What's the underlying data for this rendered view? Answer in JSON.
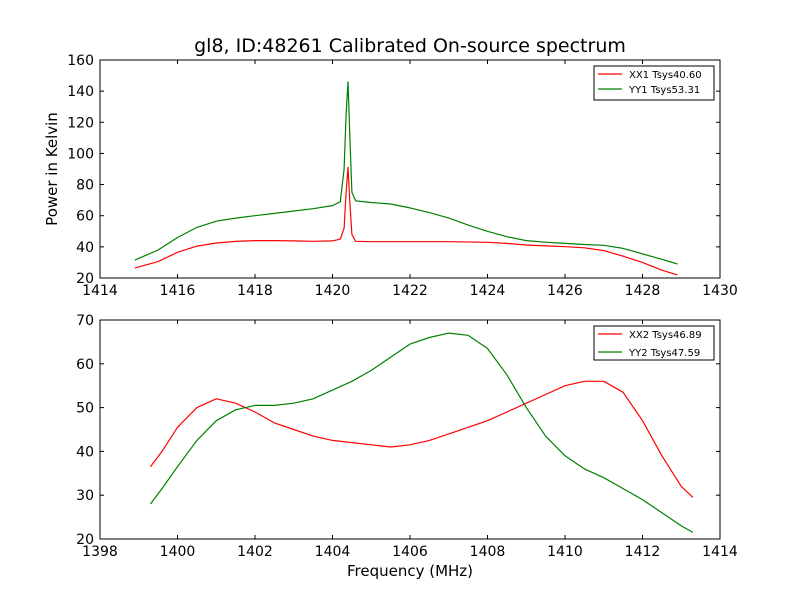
{
  "figure": {
    "title": "gl8, ID:48261 Calibrated On-source spectrum"
  },
  "colors": {
    "red": "#ff0000",
    "green": "#008000",
    "axis": "#000000"
  },
  "chart_data": [
    {
      "type": "line",
      "title": "gl8, ID:48261 Calibrated On-source spectrum",
      "xlabel": "",
      "ylabel": "Power in Kelvin",
      "xlim": [
        1414,
        1430
      ],
      "ylim": [
        20,
        160
      ],
      "xticks": [
        1414,
        1416,
        1418,
        1420,
        1422,
        1424,
        1426,
        1428,
        1430
      ],
      "yticks": [
        20,
        40,
        60,
        80,
        100,
        120,
        140,
        160
      ],
      "legend_position": "top-right",
      "grid": false,
      "series": [
        {
          "name": "XX1 Tsys40.60",
          "color": "#ff0000",
          "x": [
            1414.9,
            1415.5,
            1416.0,
            1416.5,
            1417.0,
            1417.5,
            1418.0,
            1418.5,
            1419.0,
            1419.5,
            1420.0,
            1420.2,
            1420.3,
            1420.35,
            1420.4,
            1420.45,
            1420.5,
            1420.6,
            1421.0,
            1421.5,
            1422.0,
            1423.0,
            1424.0,
            1424.5,
            1425.0,
            1425.5,
            1426.0,
            1426.5,
            1427.0,
            1427.5,
            1428.0,
            1428.5,
            1428.9
          ],
          "y": [
            26.5,
            30.5,
            36.5,
            40.5,
            42.5,
            43.5,
            44.0,
            44.0,
            43.8,
            43.6,
            43.8,
            45.0,
            52.0,
            75.0,
            91.0,
            68.0,
            48.0,
            43.6,
            43.3,
            43.3,
            43.3,
            43.3,
            42.9,
            42.2,
            41.2,
            40.6,
            40.1,
            39.4,
            37.6,
            34.0,
            30.0,
            25.0,
            22.0
          ]
        },
        {
          "name": "YY1 Tsys53.31",
          "color": "#008000",
          "x": [
            1414.9,
            1415.5,
            1416.0,
            1416.5,
            1417.0,
            1417.5,
            1418.0,
            1418.5,
            1419.0,
            1419.5,
            1420.0,
            1420.2,
            1420.3,
            1420.35,
            1420.4,
            1420.45,
            1420.5,
            1420.6,
            1421.0,
            1421.5,
            1422.0,
            1422.5,
            1423.0,
            1423.5,
            1424.0,
            1424.5,
            1425.0,
            1425.5,
            1426.0,
            1426.5,
            1427.0,
            1427.5,
            1428.0,
            1428.5,
            1428.9
          ],
          "y": [
            31.5,
            38.0,
            46.0,
            52.5,
            56.5,
            58.5,
            60.0,
            61.5,
            63.0,
            64.5,
            66.5,
            69.0,
            90.0,
            125.0,
            146.0,
            110.0,
            75.0,
            69.5,
            68.5,
            67.5,
            65.0,
            62.0,
            58.5,
            54.0,
            50.0,
            46.5,
            44.0,
            43.0,
            42.2,
            41.5,
            41.0,
            39.0,
            35.5,
            32.0,
            29.0
          ]
        }
      ]
    },
    {
      "type": "line",
      "title": "",
      "xlabel": "Frequency (MHz)",
      "ylabel": "",
      "xlim": [
        1398,
        1414
      ],
      "ylim": [
        20,
        70
      ],
      "xticks": [
        1398,
        1400,
        1402,
        1404,
        1406,
        1408,
        1410,
        1412,
        1414
      ],
      "yticks": [
        20,
        30,
        40,
        50,
        60,
        70
      ],
      "legend_position": "top-right",
      "grid": false,
      "series": [
        {
          "name": "XX2 Tsys46.89",
          "color": "#ff0000",
          "x": [
            1399.3,
            1399.6,
            1400.0,
            1400.5,
            1401.0,
            1401.5,
            1402.0,
            1402.5,
            1403.0,
            1403.5,
            1404.0,
            1404.5,
            1405.0,
            1405.5,
            1406.0,
            1406.5,
            1407.0,
            1407.5,
            1408.0,
            1408.5,
            1409.0,
            1409.5,
            1410.0,
            1410.5,
            1411.0,
            1411.5,
            1412.0,
            1412.5,
            1413.0,
            1413.3
          ],
          "y": [
            36.5,
            40.0,
            45.5,
            50.0,
            52.0,
            51.0,
            49.0,
            46.5,
            45.0,
            43.5,
            42.5,
            42.0,
            41.5,
            41.0,
            41.5,
            42.5,
            44.0,
            45.5,
            47.0,
            49.0,
            51.0,
            53.0,
            55.0,
            56.0,
            56.0,
            53.5,
            47.0,
            39.0,
            32.0,
            29.5
          ]
        },
        {
          "name": "YY2 Tsys47.59",
          "color": "#008000",
          "x": [
            1399.3,
            1399.6,
            1400.0,
            1400.5,
            1401.0,
            1401.5,
            1402.0,
            1402.5,
            1403.0,
            1403.5,
            1404.0,
            1404.5,
            1405.0,
            1405.5,
            1406.0,
            1406.5,
            1407.0,
            1407.5,
            1408.0,
            1408.5,
            1409.0,
            1409.5,
            1410.0,
            1410.5,
            1411.0,
            1411.5,
            1412.0,
            1412.5,
            1413.0,
            1413.3
          ],
          "y": [
            28.0,
            31.5,
            36.5,
            42.5,
            47.0,
            49.5,
            50.5,
            50.5,
            51.0,
            52.0,
            54.0,
            56.0,
            58.5,
            61.5,
            64.5,
            66.0,
            67.0,
            66.5,
            63.5,
            57.5,
            50.0,
            43.5,
            39.0,
            36.0,
            34.0,
            31.5,
            29.0,
            26.0,
            23.0,
            21.5
          ]
        }
      ]
    }
  ]
}
